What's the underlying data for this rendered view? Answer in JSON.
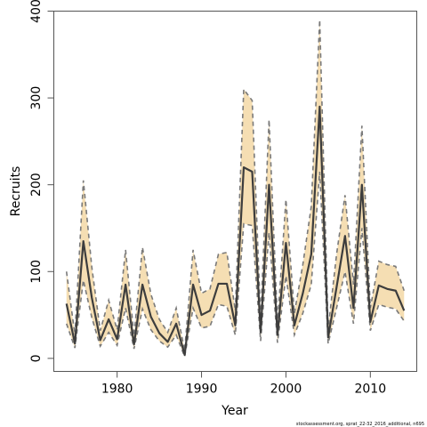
{
  "chart_data": {
    "type": "area",
    "xlabel": "Year",
    "ylabel": "Recruits",
    "xlim": [
      1972.5,
      2015.5
    ],
    "ylim": [
      -15,
      400
    ],
    "x_ticks": [
      1980,
      1990,
      2000,
      2010
    ],
    "y_ticks": [
      0,
      100,
      200,
      300,
      400
    ],
    "grid": false,
    "footnote": "stockassessment.org, sprat_22-32_2016_additional, n695",
    "colors": {
      "band": "#f5deb3",
      "line": "#3d3d3d",
      "bound": "#7a7a7a"
    },
    "x": [
      1974,
      1975,
      1976,
      1977,
      1978,
      1979,
      1980,
      1981,
      1982,
      1983,
      1984,
      1985,
      1986,
      1987,
      1988,
      1989,
      1990,
      1991,
      1992,
      1993,
      1994,
      1995,
      1996,
      1997,
      1998,
      1999,
      2000,
      2001,
      2002,
      2003,
      2004,
      2005,
      2006,
      2007,
      2008,
      2009,
      2010,
      2011,
      2012,
      2013,
      2014
    ],
    "series": [
      {
        "role": "estimate",
        "values": [
          63,
          17,
          135,
          70,
          21,
          45,
          22,
          85,
          16,
          85,
          48,
          29,
          19,
          40,
          4,
          85,
          50,
          55,
          86,
          86,
          38,
          220,
          215,
          30,
          200,
          27,
          133,
          38,
          75,
          120,
          290,
          24,
          82,
          141,
          58,
          200,
          42,
          84,
          80,
          78,
          55
        ]
      },
      {
        "role": "upper",
        "values": [
          100,
          27,
          205,
          105,
          32,
          67,
          33,
          125,
          26,
          128,
          74,
          45,
          30,
          58,
          9,
          125,
          75,
          80,
          120,
          122,
          55,
          310,
          297,
          45,
          275,
          40,
          183,
          52,
          108,
          175,
          390,
          34,
          120,
          188,
          85,
          268,
          58,
          112,
          108,
          106,
          78
        ]
      },
      {
        "role": "lower",
        "values": [
          40,
          12,
          90,
          47,
          14,
          30,
          15,
          58,
          11,
          57,
          33,
          20,
          13,
          27,
          2,
          58,
          35,
          37,
          62,
          60,
          27,
          155,
          153,
          20,
          145,
          18,
          95,
          27,
          52,
          85,
          215,
          17,
          58,
          100,
          40,
          150,
          32,
          62,
          59,
          57,
          43
        ]
      }
    ]
  }
}
